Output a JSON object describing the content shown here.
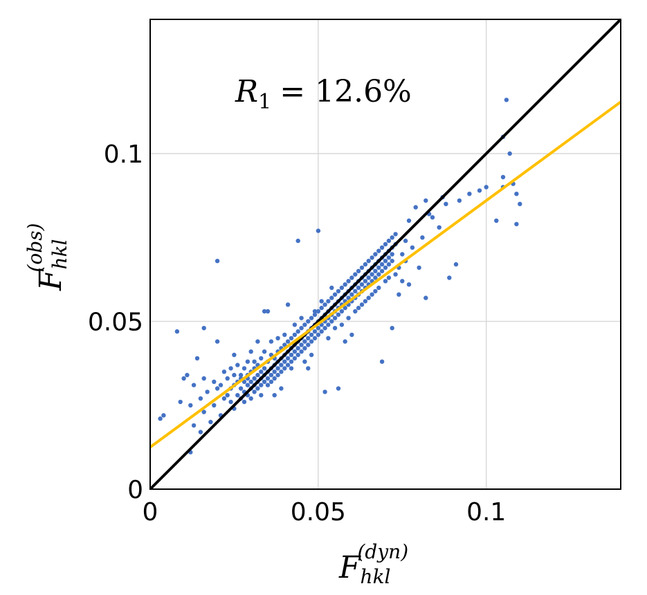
{
  "chart_data": {
    "type": "scatter",
    "title": "",
    "annotation": {
      "symbol": "R",
      "subscript": "1",
      "text": "= 12.6%"
    },
    "xlabel": {
      "symbol": "F",
      "subscript": "hkl",
      "superscript": "(dyn)"
    },
    "ylabel": {
      "symbol": "F",
      "subscript": "hkl",
      "superscript": "(obs)"
    },
    "xlim": [
      0,
      0.14
    ],
    "ylim": [
      0,
      0.14
    ],
    "xticks": [
      {
        "value": 0,
        "label": "0"
      },
      {
        "value": 0.05,
        "label": "0.05"
      },
      {
        "value": 0.1,
        "label": "0.1"
      }
    ],
    "yticks": [
      {
        "value": 0,
        "label": "0"
      },
      {
        "value": 0.05,
        "label": "0.05"
      },
      {
        "value": 0.1,
        "label": "0.1"
      }
    ],
    "grid": true,
    "colors": {
      "points": "#4472c4",
      "identity_line": "#000000",
      "fit_line": "#ffc000",
      "grid": "#d9d9d9",
      "axes": "#000000"
    },
    "lines": [
      {
        "name": "identity",
        "slope": 1.0,
        "intercept": 0.0
      },
      {
        "name": "fit",
        "slope": 0.735,
        "intercept": 0.0125
      }
    ],
    "points": [
      [
        0.003,
        0.021
      ],
      [
        0.004,
        0.022
      ],
      [
        0.008,
        0.047
      ],
      [
        0.009,
        0.026
      ],
      [
        0.01,
        0.033
      ],
      [
        0.011,
        0.034
      ],
      [
        0.012,
        0.025
      ],
      [
        0.012,
        0.011
      ],
      [
        0.013,
        0.019
      ],
      [
        0.013,
        0.031
      ],
      [
        0.014,
        0.039
      ],
      [
        0.015,
        0.017
      ],
      [
        0.015,
        0.027
      ],
      [
        0.016,
        0.023
      ],
      [
        0.016,
        0.033
      ],
      [
        0.016,
        0.048
      ],
      [
        0.017,
        0.029
      ],
      [
        0.018,
        0.02
      ],
      [
        0.019,
        0.025
      ],
      [
        0.019,
        0.032
      ],
      [
        0.02,
        0.068
      ],
      [
        0.02,
        0.044
      ],
      [
        0.02,
        0.03
      ],
      [
        0.021,
        0.022
      ],
      [
        0.021,
        0.031
      ],
      [
        0.022,
        0.035
      ],
      [
        0.022,
        0.027
      ],
      [
        0.023,
        0.028
      ],
      [
        0.023,
        0.033
      ],
      [
        0.024,
        0.026
      ],
      [
        0.024,
        0.036
      ],
      [
        0.024,
        0.03
      ],
      [
        0.025,
        0.031
      ],
      [
        0.025,
        0.024
      ],
      [
        0.025,
        0.034
      ],
      [
        0.025,
        0.04
      ],
      [
        0.026,
        0.028
      ],
      [
        0.026,
        0.032
      ],
      [
        0.026,
        0.037
      ],
      [
        0.027,
        0.03
      ],
      [
        0.027,
        0.027
      ],
      [
        0.027,
        0.034
      ],
      [
        0.027,
        0.033
      ],
      [
        0.028,
        0.029
      ],
      [
        0.028,
        0.036
      ],
      [
        0.028,
        0.026
      ],
      [
        0.028,
        0.032
      ],
      [
        0.029,
        0.031
      ],
      [
        0.029,
        0.034
      ],
      [
        0.029,
        0.028
      ],
      [
        0.029,
        0.038
      ],
      [
        0.029,
        0.033
      ],
      [
        0.03,
        0.03
      ],
      [
        0.03,
        0.035
      ],
      [
        0.03,
        0.027
      ],
      [
        0.03,
        0.032
      ],
      [
        0.03,
        0.041
      ],
      [
        0.031,
        0.033
      ],
      [
        0.031,
        0.029
      ],
      [
        0.031,
        0.036
      ],
      [
        0.031,
        0.031
      ],
      [
        0.031,
        0.038
      ],
      [
        0.032,
        0.034
      ],
      [
        0.032,
        0.03
      ],
      [
        0.032,
        0.032
      ],
      [
        0.032,
        0.037
      ],
      [
        0.032,
        0.044
      ],
      [
        0.033,
        0.035
      ],
      [
        0.033,
        0.031
      ],
      [
        0.033,
        0.033
      ],
      [
        0.033,
        0.039
      ],
      [
        0.033,
        0.028
      ],
      [
        0.034,
        0.034
      ],
      [
        0.034,
        0.036
      ],
      [
        0.034,
        0.032
      ],
      [
        0.034,
        0.053
      ],
      [
        0.034,
        0.041
      ],
      [
        0.035,
        0.035
      ],
      [
        0.035,
        0.033
      ],
      [
        0.035,
        0.038
      ],
      [
        0.035,
        0.031
      ],
      [
        0.035,
        0.053
      ],
      [
        0.036,
        0.036
      ],
      [
        0.036,
        0.034
      ],
      [
        0.036,
        0.04
      ],
      [
        0.036,
        0.032
      ],
      [
        0.036,
        0.044
      ],
      [
        0.037,
        0.037
      ],
      [
        0.037,
        0.035
      ],
      [
        0.037,
        0.039
      ],
      [
        0.037,
        0.033
      ],
      [
        0.037,
        0.028
      ],
      [
        0.038,
        0.038
      ],
      [
        0.038,
        0.036
      ],
      [
        0.038,
        0.041
      ],
      [
        0.038,
        0.034
      ],
      [
        0.038,
        0.045
      ],
      [
        0.039,
        0.039
      ],
      [
        0.039,
        0.037
      ],
      [
        0.039,
        0.042
      ],
      [
        0.039,
        0.035
      ],
      [
        0.039,
        0.03
      ],
      [
        0.04,
        0.04
      ],
      [
        0.04,
        0.038
      ],
      [
        0.04,
        0.043
      ],
      [
        0.04,
        0.036
      ],
      [
        0.04,
        0.046
      ],
      [
        0.041,
        0.041
      ],
      [
        0.041,
        0.039
      ],
      [
        0.041,
        0.044
      ],
      [
        0.041,
        0.037
      ],
      [
        0.041,
        0.055
      ],
      [
        0.042,
        0.042
      ],
      [
        0.042,
        0.04
      ],
      [
        0.042,
        0.045
      ],
      [
        0.042,
        0.038
      ],
      [
        0.042,
        0.036
      ],
      [
        0.043,
        0.043
      ],
      [
        0.043,
        0.041
      ],
      [
        0.043,
        0.046
      ],
      [
        0.043,
        0.039
      ],
      [
        0.043,
        0.049
      ],
      [
        0.044,
        0.044
      ],
      [
        0.044,
        0.042
      ],
      [
        0.044,
        0.047
      ],
      [
        0.044,
        0.04
      ],
      [
        0.044,
        0.074
      ],
      [
        0.045,
        0.045
      ],
      [
        0.045,
        0.043
      ],
      [
        0.045,
        0.048
      ],
      [
        0.045,
        0.041
      ],
      [
        0.045,
        0.051
      ],
      [
        0.046,
        0.046
      ],
      [
        0.046,
        0.044
      ],
      [
        0.046,
        0.049
      ],
      [
        0.046,
        0.042
      ],
      [
        0.046,
        0.038
      ],
      [
        0.047,
        0.047
      ],
      [
        0.047,
        0.045
      ],
      [
        0.047,
        0.05
      ],
      [
        0.047,
        0.043
      ],
      [
        0.047,
        0.036
      ],
      [
        0.048,
        0.048
      ],
      [
        0.048,
        0.046
      ],
      [
        0.048,
        0.051
      ],
      [
        0.048,
        0.044
      ],
      [
        0.048,
        0.04
      ],
      [
        0.049,
        0.049
      ],
      [
        0.049,
        0.047
      ],
      [
        0.049,
        0.052
      ],
      [
        0.049,
        0.045
      ],
      [
        0.049,
        0.053
      ],
      [
        0.05,
        0.05
      ],
      [
        0.05,
        0.048
      ],
      [
        0.05,
        0.053
      ],
      [
        0.05,
        0.046
      ],
      [
        0.05,
        0.077
      ],
      [
        0.051,
        0.051
      ],
      [
        0.051,
        0.049
      ],
      [
        0.051,
        0.054
      ],
      [
        0.051,
        0.047
      ],
      [
        0.051,
        0.056
      ],
      [
        0.052,
        0.052
      ],
      [
        0.052,
        0.05
      ],
      [
        0.052,
        0.055
      ],
      [
        0.052,
        0.048
      ],
      [
        0.052,
        0.029
      ],
      [
        0.053,
        0.053
      ],
      [
        0.053,
        0.051
      ],
      [
        0.053,
        0.056
      ],
      [
        0.053,
        0.049
      ],
      [
        0.053,
        0.045
      ],
      [
        0.054,
        0.054
      ],
      [
        0.054,
        0.052
      ],
      [
        0.054,
        0.057
      ],
      [
        0.054,
        0.05
      ],
      [
        0.054,
        0.06
      ],
      [
        0.055,
        0.055
      ],
      [
        0.055,
        0.053
      ],
      [
        0.055,
        0.058
      ],
      [
        0.055,
        0.051
      ],
      [
        0.055,
        0.048
      ],
      [
        0.056,
        0.056
      ],
      [
        0.056,
        0.054
      ],
      [
        0.056,
        0.059
      ],
      [
        0.056,
        0.052
      ],
      [
        0.056,
        0.03
      ],
      [
        0.057,
        0.057
      ],
      [
        0.057,
        0.055
      ],
      [
        0.057,
        0.06
      ],
      [
        0.057,
        0.053
      ],
      [
        0.057,
        0.049
      ],
      [
        0.058,
        0.058
      ],
      [
        0.058,
        0.056
      ],
      [
        0.058,
        0.061
      ],
      [
        0.058,
        0.054
      ],
      [
        0.058,
        0.044
      ],
      [
        0.059,
        0.059
      ],
      [
        0.059,
        0.057
      ],
      [
        0.059,
        0.062
      ],
      [
        0.059,
        0.055
      ],
      [
        0.059,
        0.051
      ],
      [
        0.06,
        0.06
      ],
      [
        0.06,
        0.058
      ],
      [
        0.06,
        0.063
      ],
      [
        0.06,
        0.056
      ],
      [
        0.06,
        0.046
      ],
      [
        0.061,
        0.061
      ],
      [
        0.061,
        0.059
      ],
      [
        0.061,
        0.064
      ],
      [
        0.061,
        0.057
      ],
      [
        0.061,
        0.053
      ],
      [
        0.062,
        0.062
      ],
      [
        0.062,
        0.06
      ],
      [
        0.062,
        0.065
      ],
      [
        0.062,
        0.058
      ],
      [
        0.062,
        0.054
      ],
      [
        0.063,
        0.063
      ],
      [
        0.063,
        0.061
      ],
      [
        0.063,
        0.066
      ],
      [
        0.063,
        0.059
      ],
      [
        0.063,
        0.055
      ],
      [
        0.064,
        0.064
      ],
      [
        0.064,
        0.062
      ],
      [
        0.064,
        0.067
      ],
      [
        0.064,
        0.06
      ],
      [
        0.064,
        0.056
      ],
      [
        0.065,
        0.065
      ],
      [
        0.065,
        0.063
      ],
      [
        0.065,
        0.068
      ],
      [
        0.065,
        0.061
      ],
      [
        0.065,
        0.057
      ],
      [
        0.066,
        0.066
      ],
      [
        0.066,
        0.064
      ],
      [
        0.066,
        0.069
      ],
      [
        0.066,
        0.062
      ],
      [
        0.066,
        0.058
      ],
      [
        0.067,
        0.067
      ],
      [
        0.067,
        0.065
      ],
      [
        0.067,
        0.07
      ],
      [
        0.067,
        0.063
      ],
      [
        0.067,
        0.059
      ],
      [
        0.068,
        0.068
      ],
      [
        0.068,
        0.066
      ],
      [
        0.068,
        0.071
      ],
      [
        0.068,
        0.064
      ],
      [
        0.068,
        0.06
      ],
      [
        0.069,
        0.069
      ],
      [
        0.069,
        0.067
      ],
      [
        0.069,
        0.072
      ],
      [
        0.069,
        0.065
      ],
      [
        0.069,
        0.038
      ],
      [
        0.07,
        0.07
      ],
      [
        0.07,
        0.068
      ],
      [
        0.07,
        0.073
      ],
      [
        0.07,
        0.066
      ],
      [
        0.07,
        0.062
      ],
      [
        0.071,
        0.071
      ],
      [
        0.071,
        0.069
      ],
      [
        0.071,
        0.074
      ],
      [
        0.071,
        0.067
      ],
      [
        0.071,
        0.063
      ],
      [
        0.072,
        0.072
      ],
      [
        0.072,
        0.07
      ],
      [
        0.072,
        0.075
      ],
      [
        0.072,
        0.068
      ],
      [
        0.072,
        0.048
      ],
      [
        0.073,
        0.073
      ],
      [
        0.073,
        0.064
      ],
      [
        0.073,
        0.076
      ],
      [
        0.074,
        0.066
      ],
      [
        0.074,
        0.058
      ],
      [
        0.075,
        0.07
      ],
      [
        0.075,
        0.062
      ],
      [
        0.076,
        0.074
      ],
      [
        0.076,
        0.068
      ],
      [
        0.077,
        0.08
      ],
      [
        0.077,
        0.061
      ],
      [
        0.078,
        0.072
      ],
      [
        0.079,
        0.084
      ],
      [
        0.08,
        0.066
      ],
      [
        0.081,
        0.075
      ],
      [
        0.082,
        0.086
      ],
      [
        0.082,
        0.057
      ],
      [
        0.083,
        0.082
      ],
      [
        0.084,
        0.081
      ],
      [
        0.086,
        0.078
      ],
      [
        0.087,
        0.087
      ],
      [
        0.088,
        0.085
      ],
      [
        0.089,
        0.063
      ],
      [
        0.091,
        0.067
      ],
      [
        0.092,
        0.086
      ],
      [
        0.095,
        0.088
      ],
      [
        0.098,
        0.089
      ],
      [
        0.1,
        0.09
      ],
      [
        0.105,
        0.105
      ],
      [
        0.105,
        0.093
      ],
      [
        0.105,
        0.09
      ],
      [
        0.106,
        0.116
      ],
      [
        0.107,
        0.1
      ],
      [
        0.108,
        0.091
      ],
      [
        0.109,
        0.088
      ],
      [
        0.11,
        0.085
      ],
      [
        0.109,
        0.079
      ],
      [
        0.103,
        0.08
      ]
    ]
  }
}
